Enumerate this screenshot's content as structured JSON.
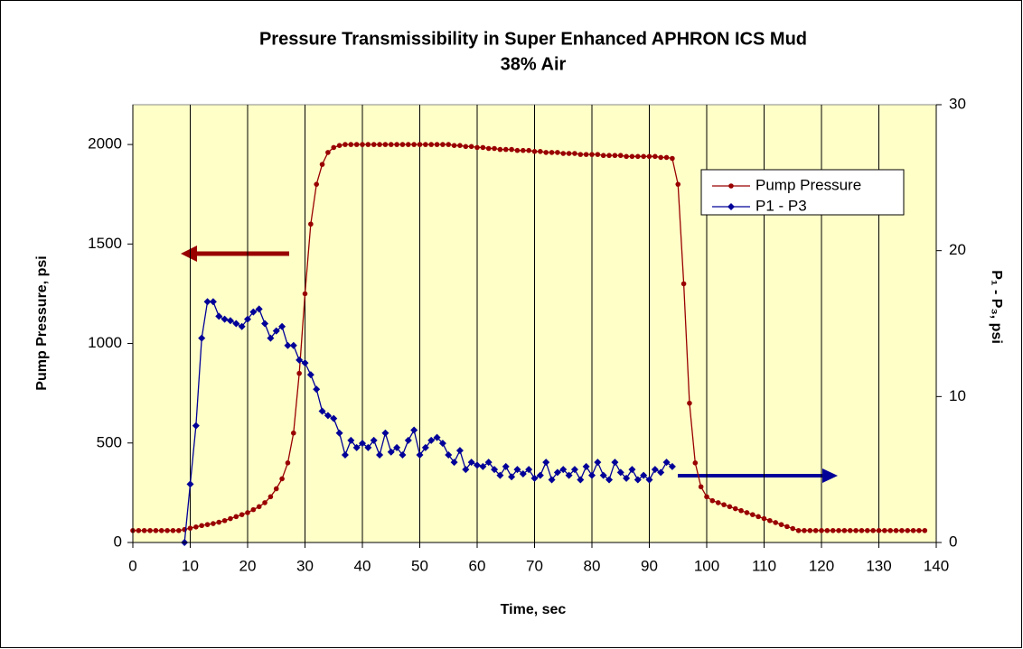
{
  "chart_data": {
    "type": "line",
    "title": "Pressure Transmissibility in Super Enhanced APHRON ICS Mud",
    "subtitle": "38% Air",
    "x_label": "Time, sec",
    "y_label": "Pump Pressure, psi",
    "y2_label": "P₁ - P₃, psi",
    "xlim": [
      0,
      140
    ],
    "xticks": [
      0,
      10,
      20,
      30,
      40,
      50,
      60,
      70,
      80,
      90,
      100,
      110,
      120,
      130,
      140
    ],
    "ylim": [
      0,
      2200
    ],
    "yticks": [
      0,
      500,
      1000,
      1500,
      2000
    ],
    "y2lim": [
      0,
      30
    ],
    "y2ticks": [
      0,
      10,
      20,
      30
    ],
    "grid": "x",
    "legend": "upper right",
    "series": [
      {
        "name": "Pump Pressure",
        "color": "#990000",
        "marker": "circle",
        "x": [
          0,
          1,
          2,
          3,
          4,
          5,
          6,
          7,
          8,
          9,
          10,
          11,
          12,
          13,
          14,
          15,
          16,
          17,
          18,
          19,
          20,
          21,
          22,
          23,
          24,
          25,
          26,
          27,
          28,
          29,
          30,
          31,
          32,
          33,
          34,
          35,
          36,
          37,
          38,
          39,
          40,
          41,
          42,
          43,
          44,
          45,
          46,
          47,
          48,
          49,
          50,
          51,
          52,
          53,
          54,
          55,
          56,
          57,
          58,
          59,
          60,
          61,
          62,
          63,
          64,
          65,
          66,
          67,
          68,
          69,
          70,
          71,
          72,
          73,
          74,
          75,
          76,
          77,
          78,
          79,
          80,
          81,
          82,
          83,
          84,
          85,
          86,
          87,
          88,
          89,
          90,
          91,
          92,
          93,
          94,
          95,
          96,
          97,
          98,
          99,
          100,
          101,
          102,
          103,
          104,
          105,
          106,
          107,
          108,
          109,
          110,
          111,
          112,
          113,
          114,
          115,
          116,
          117,
          118,
          119,
          120,
          121,
          122,
          123,
          124,
          125,
          126,
          127,
          128,
          129,
          130,
          131,
          132,
          133,
          134,
          135,
          136,
          137,
          138
        ],
        "values": [
          60,
          60,
          60,
          60,
          60,
          60,
          60,
          60,
          60,
          65,
          72,
          78,
          85,
          90,
          95,
          102,
          110,
          120,
          130,
          140,
          150,
          165,
          180,
          200,
          230,
          270,
          320,
          400,
          550,
          850,
          1250,
          1600,
          1800,
          1900,
          1960,
          1985,
          1995,
          2000,
          2000,
          2000,
          2000,
          2000,
          2000,
          2000,
          2000,
          2000,
          2000,
          2000,
          2000,
          2000,
          2000,
          2000,
          2000,
          2000,
          2000,
          2000,
          1995,
          1995,
          1990,
          1990,
          1985,
          1985,
          1980,
          1980,
          1975,
          1975,
          1975,
          1970,
          1970,
          1970,
          1965,
          1965,
          1960,
          1960,
          1960,
          1955,
          1955,
          1955,
          1950,
          1950,
          1950,
          1950,
          1945,
          1945,
          1945,
          1945,
          1940,
          1940,
          1940,
          1940,
          1940,
          1940,
          1935,
          1935,
          1930,
          1800,
          1300,
          700,
          400,
          280,
          230,
          210,
          200,
          190,
          180,
          170,
          160,
          150,
          140,
          130,
          120,
          110,
          100,
          90,
          80,
          70,
          60,
          60,
          60,
          60,
          60,
          60,
          60,
          60,
          60,
          60,
          60,
          60,
          60,
          60,
          60,
          60,
          60,
          60,
          60,
          60,
          60,
          60,
          60
        ]
      },
      {
        "name": "P1 - P3",
        "color": "#000099",
        "marker": "diamond",
        "axis": "y2",
        "x": [
          9,
          10,
          11,
          12,
          13,
          14,
          15,
          16,
          17,
          18,
          19,
          20,
          21,
          22,
          23,
          24,
          25,
          26,
          27,
          28,
          29,
          30,
          31,
          32,
          33,
          34,
          35,
          36,
          37,
          38,
          39,
          40,
          41,
          42,
          43,
          44,
          45,
          46,
          47,
          48,
          49,
          50,
          51,
          52,
          53,
          54,
          55,
          56,
          57,
          58,
          59,
          60,
          61,
          62,
          63,
          64,
          65,
          66,
          67,
          68,
          69,
          70,
          71,
          72,
          73,
          74,
          75,
          76,
          77,
          78,
          79,
          80,
          81,
          82,
          83,
          84,
          85,
          86,
          87,
          88,
          89,
          90,
          91,
          92,
          93,
          94
        ],
        "values": [
          0,
          4,
          8,
          14,
          16.5,
          16.5,
          15.5,
          15.3,
          15.2,
          15,
          14.8,
          15.3,
          15.8,
          16,
          15,
          14,
          14.5,
          14.8,
          13.5,
          13.5,
          12.5,
          12.3,
          11.5,
          10.5,
          9,
          8.7,
          8.5,
          7.5,
          6,
          7,
          6.5,
          6.8,
          6.5,
          7,
          6,
          7.5,
          6.2,
          6.5,
          6,
          7,
          7.7,
          6,
          6.5,
          7,
          7.2,
          6.8,
          6,
          5.5,
          6.3,
          5,
          5.5,
          5.3,
          5.2,
          5.5,
          5,
          4.6,
          5.2,
          4.5,
          5,
          4.7,
          5,
          4.4,
          4.6,
          5.5,
          4.3,
          4.8,
          5,
          4.6,
          5,
          4.3,
          5.2,
          4.6,
          5.5,
          4.6,
          4.3,
          5.5,
          4.8,
          4.4,
          5,
          4.3,
          4.6,
          4.3,
          5,
          4.8,
          5.5,
          5.2
        ]
      }
    ]
  }
}
